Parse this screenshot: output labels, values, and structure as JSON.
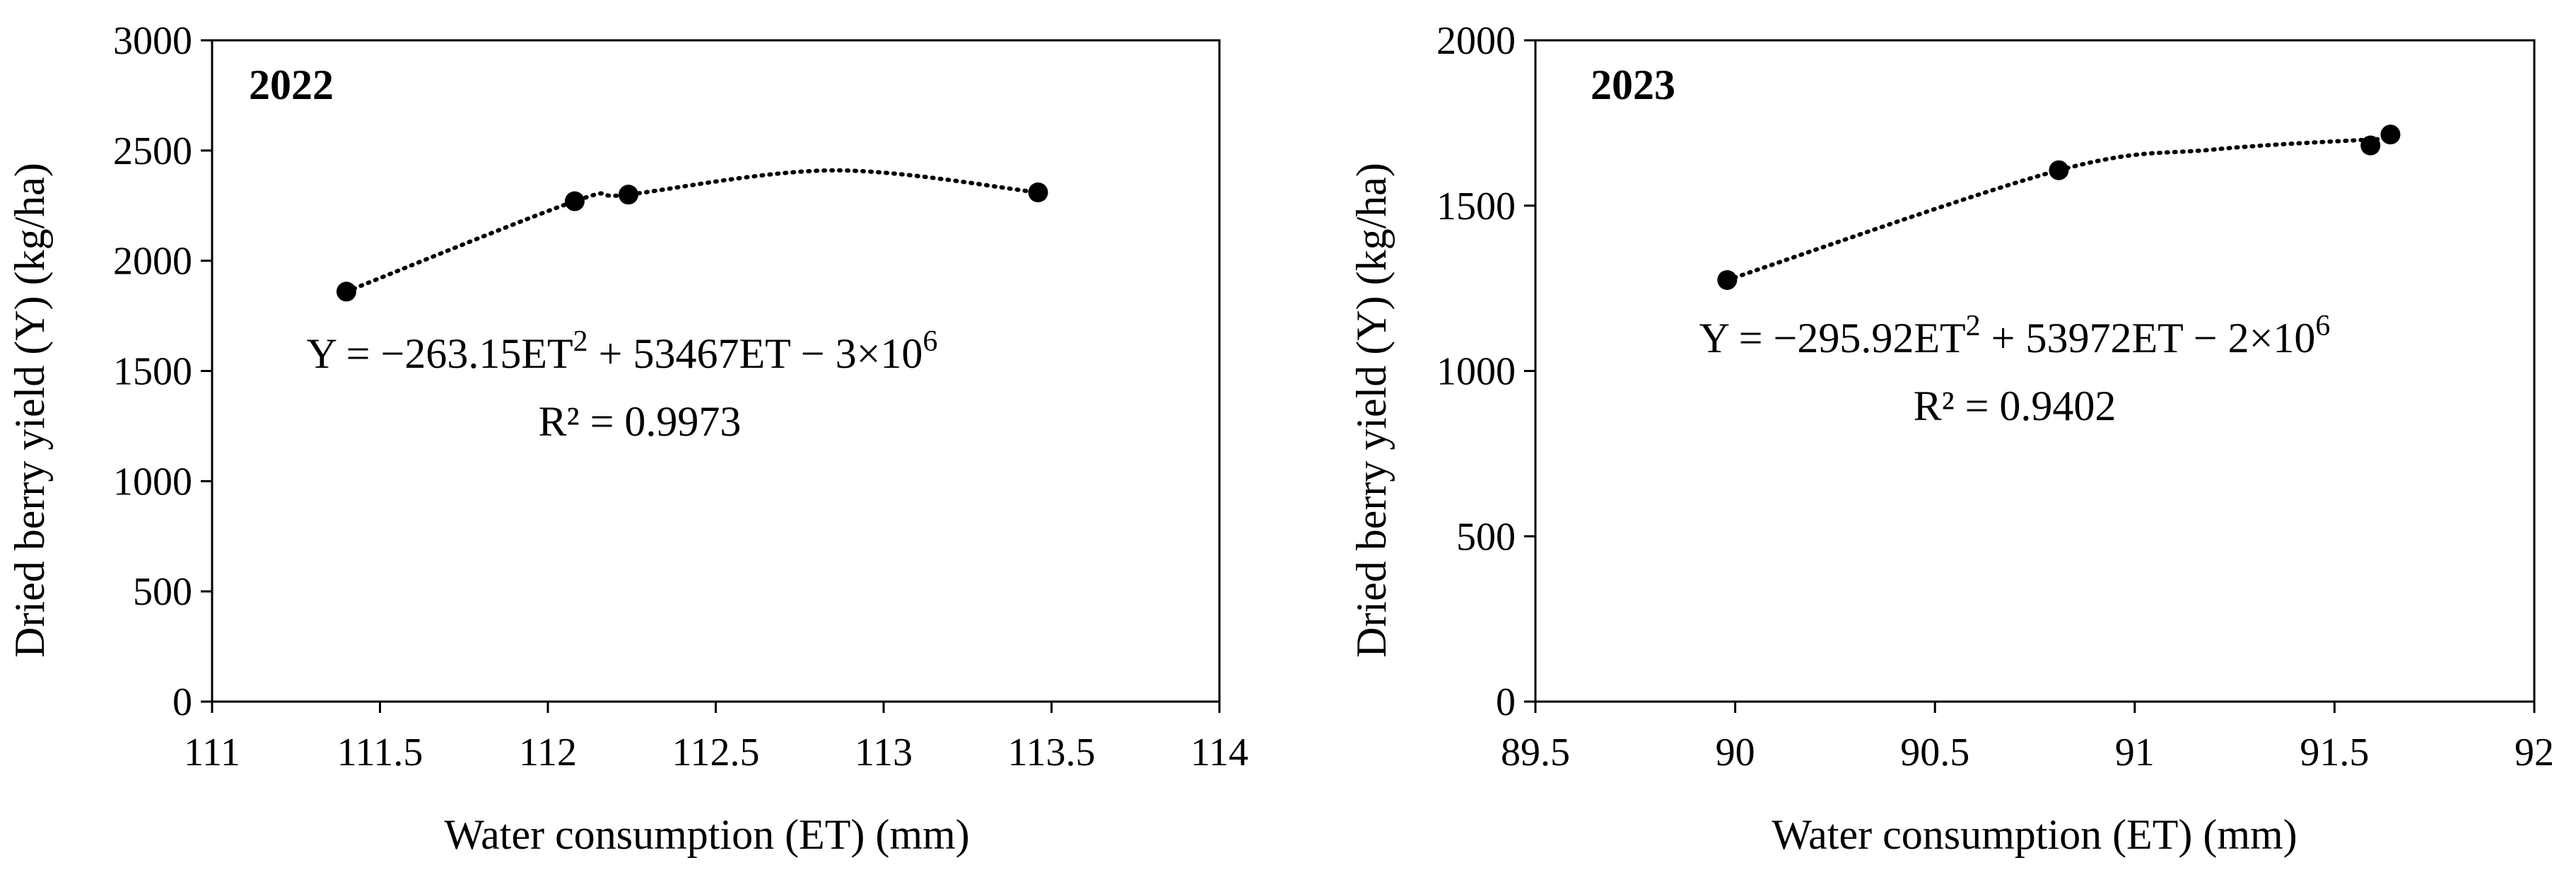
{
  "chart_data": [
    {
      "type": "scatter",
      "panel_label": "2022",
      "xlabel": "Water consumption (ET) (mm)",
      "ylabel": "Dried berry yield (Y) (kg/ha)",
      "xlim": [
        111,
        114
      ],
      "ylim": [
        0,
        3000
      ],
      "xticks": [
        "111",
        "111.5",
        "112",
        "112.5",
        "113",
        "113.5",
        "114"
      ],
      "yticks": [
        "0",
        "500",
        "1000",
        "1500",
        "2000",
        "2500",
        "3000"
      ],
      "grid": false,
      "points": [
        {
          "x": 111.4,
          "y": 1860
        },
        {
          "x": 112.08,
          "y": 2270
        },
        {
          "x": 112.24,
          "y": 2300
        },
        {
          "x": 113.46,
          "y": 2310
        }
      ],
      "trendline": {
        "type": "polynomial-2",
        "style": "dotted",
        "x_range": [
          111.4,
          113.46
        ],
        "equation_prefix": "Y = −263.15ET",
        "equation_sup1": "2",
        "equation_middle": " + 53467ET − 3×10",
        "equation_sup2": "6",
        "r2": "R² = 0.9973",
        "curve": [
          {
            "x": 111.4,
            "y": 1860
          },
          {
            "x": 112.08,
            "y": 2270
          },
          {
            "x": 112.24,
            "y": 2300
          },
          {
            "x": 112.85,
            "y": 2410
          },
          {
            "x": 113.46,
            "y": 2310
          }
        ]
      }
    },
    {
      "type": "scatter",
      "panel_label": "2023",
      "xlabel": "Water consumption (ET) (mm)",
      "ylabel": "Dried berry yield (Y) (kg/ha)",
      "xlim": [
        89.5,
        92
      ],
      "ylim": [
        0,
        2000
      ],
      "xticks": [
        "89.5",
        "90",
        "90.5",
        "91",
        "91.5",
        "92"
      ],
      "yticks": [
        "0",
        "500",
        "1000",
        "1500",
        "2000"
      ],
      "grid": false,
      "points": [
        {
          "x": 89.98,
          "y": 1275
        },
        {
          "x": 90.81,
          "y": 1607
        },
        {
          "x": 91.59,
          "y": 1682
        },
        {
          "x": 91.64,
          "y": 1715
        }
      ],
      "trendline": {
        "type": "polynomial-2",
        "style": "dotted",
        "x_range": [
          89.98,
          91.64
        ],
        "equation_prefix": "Y = −295.92ET",
        "equation_sup1": "2",
        "equation_middle": " + 53972ET − 2×10",
        "equation_sup2": "6",
        "r2": "R² = 0.9402",
        "curve": [
          {
            "x": 89.98,
            "y": 1275
          },
          {
            "x": 90.81,
            "y": 1607
          },
          {
            "x": 91.2,
            "y": 1670
          },
          {
            "x": 91.59,
            "y": 1700
          },
          {
            "x": 91.64,
            "y": 1700
          }
        ]
      }
    }
  ]
}
